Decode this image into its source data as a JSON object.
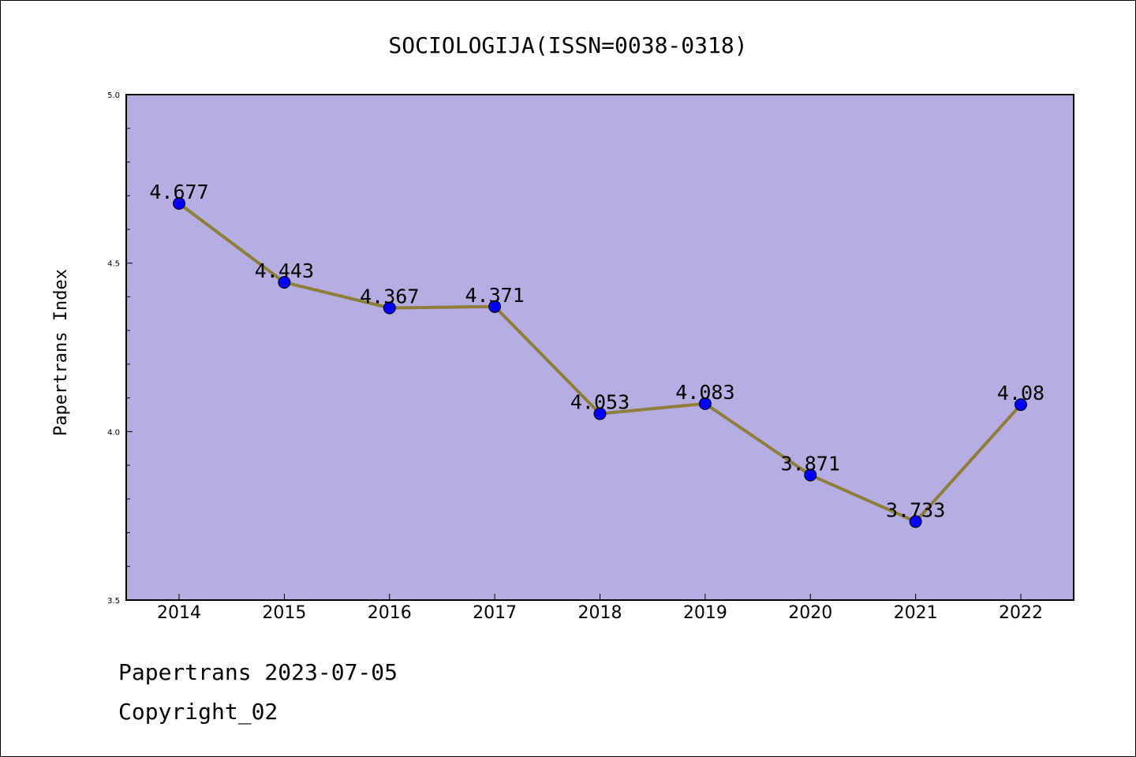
{
  "chart_data": {
    "type": "line",
    "title": "SOCIOLOGIJA(ISSN=0038-0318)",
    "xlabel": "",
    "ylabel": "Papertrans Index",
    "categories": [
      "2014",
      "2015",
      "2016",
      "2017",
      "2018",
      "2019",
      "2020",
      "2021",
      "2022"
    ],
    "series": [
      {
        "values": [
          4.677,
          4.443,
          4.367,
          4.371,
          4.053,
          4.083,
          3.871,
          3.733,
          4.08
        ],
        "labels": [
          "4.677",
          "4.443",
          "4.367",
          "4.371",
          "4.053",
          "4.083",
          "3.871",
          "3.733",
          "4.08"
        ]
      }
    ],
    "ylim": [
      3.5,
      5.0
    ],
    "yticks": [
      "3.5",
      "4.0",
      "4.5",
      "5.0"
    ],
    "grid": false,
    "colors": {
      "plot_background": "#b5aee3",
      "line": "#8f7d3a",
      "marker": "#0000ff"
    }
  },
  "footer": {
    "line1": "Papertrans 2023-07-05",
    "line2": "Copyright_02"
  }
}
